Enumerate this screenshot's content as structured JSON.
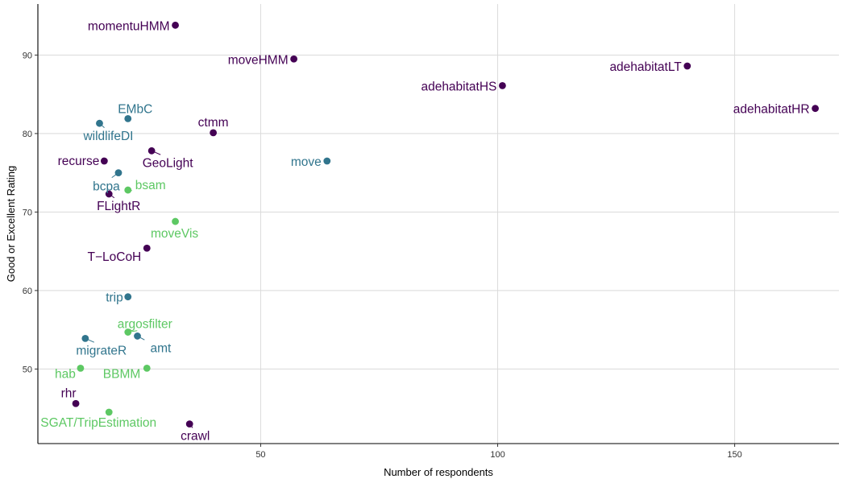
{
  "chart_data": {
    "type": "scatter",
    "xlabel": "Number of respondents",
    "ylabel": "Good or Excellent Rating",
    "xlim": [
      3,
      172
    ],
    "ylim": [
      40.5,
      96.5
    ],
    "xticks": [
      50,
      100,
      150
    ],
    "yticks": [
      50,
      60,
      70,
      80,
      90
    ],
    "grid": true,
    "legend": "none",
    "colors": {
      "purple": "#440154",
      "teal": "#31758D",
      "green": "#5DC863"
    },
    "points": [
      {
        "label": "momentuHMM",
        "x": 32,
        "y": 93.8,
        "color": "purple"
      },
      {
        "label": "moveHMM",
        "x": 57,
        "y": 89.5,
        "color": "purple"
      },
      {
        "label": "adehabitatLT",
        "x": 140,
        "y": 88.6,
        "color": "purple"
      },
      {
        "label": "adehabitatHS",
        "x": 101,
        "y": 86.1,
        "color": "purple"
      },
      {
        "label": "adehabitatHR",
        "x": 167,
        "y": 83.2,
        "color": "purple"
      },
      {
        "label": "EMbC",
        "x": 22,
        "y": 81.9,
        "color": "teal"
      },
      {
        "label": "wildlifeDI",
        "x": 16,
        "y": 81.3,
        "color": "teal"
      },
      {
        "label": "ctmm",
        "x": 40,
        "y": 80.1,
        "color": "purple"
      },
      {
        "label": "GeoLight",
        "x": 27,
        "y": 77.8,
        "color": "purple"
      },
      {
        "label": "recurse",
        "x": 17,
        "y": 76.5,
        "color": "purple"
      },
      {
        "label": "move",
        "x": 64,
        "y": 76.5,
        "color": "teal"
      },
      {
        "label": "bcpa",
        "x": 20,
        "y": 75.0,
        "color": "teal"
      },
      {
        "label": "bsam",
        "x": 22,
        "y": 72.8,
        "color": "green"
      },
      {
        "label": "FLightR",
        "x": 18,
        "y": 72.3,
        "color": "purple"
      },
      {
        "label": "moveVis",
        "x": 32,
        "y": 68.8,
        "color": "green"
      },
      {
        "label": "T−LoCoH",
        "x": 26,
        "y": 65.4,
        "color": "purple"
      },
      {
        "label": "trip",
        "x": 22,
        "y": 59.2,
        "color": "teal"
      },
      {
        "label": "argosfilter",
        "x": 22,
        "y": 54.7,
        "color": "green"
      },
      {
        "label": "amt",
        "x": 24,
        "y": 54.2,
        "color": "teal"
      },
      {
        "label": "migrateR",
        "x": 13,
        "y": 53.9,
        "color": "teal"
      },
      {
        "label": "hab",
        "x": 12,
        "y": 50.1,
        "color": "green"
      },
      {
        "label": "BBMM",
        "x": 26,
        "y": 50.1,
        "color": "green"
      },
      {
        "label": "rhr",
        "x": 11,
        "y": 45.6,
        "color": "purple"
      },
      {
        "label": "SGAT/TripEstimation",
        "x": 18,
        "y": 44.5,
        "color": "green"
      },
      {
        "label": "crawl",
        "x": 35,
        "y": 43.0,
        "color": "purple"
      }
    ]
  }
}
